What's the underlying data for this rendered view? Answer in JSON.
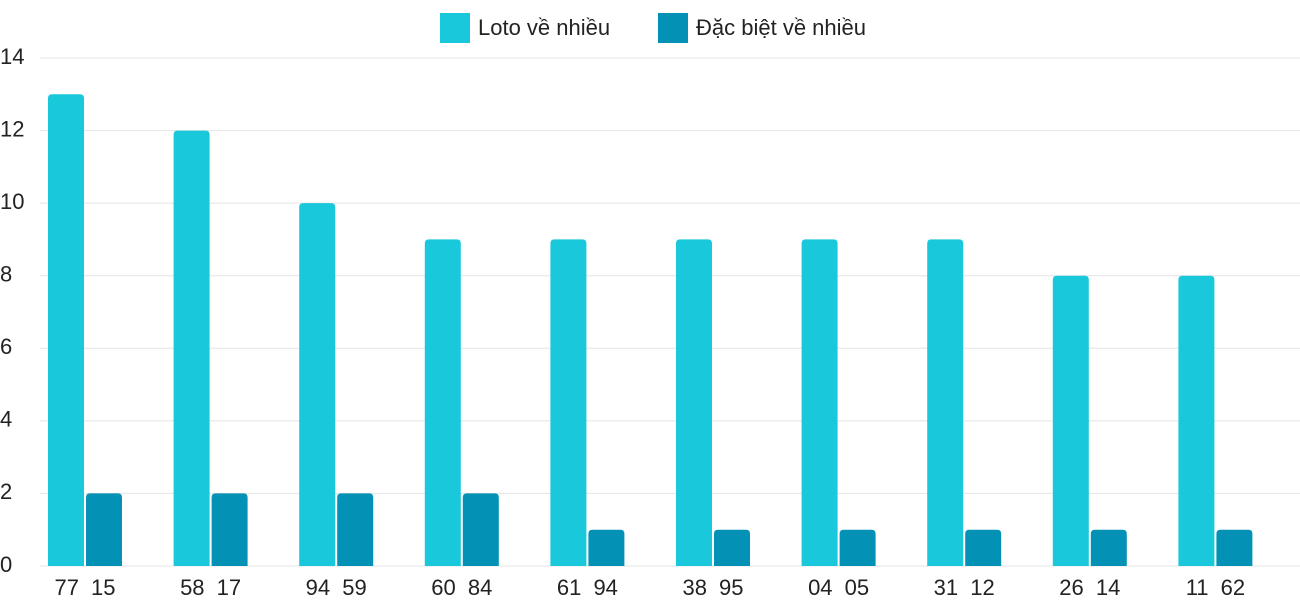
{
  "chart_data": {
    "type": "bar",
    "categories": [
      "77 15",
      "58 17",
      "94 59",
      "60 84",
      "61 94",
      "38 95",
      "04 05",
      "31 12",
      "26 14",
      "11 62"
    ],
    "series": [
      {
        "name": "Loto về nhiều",
        "color": "#1ac8db",
        "values": [
          13,
          12,
          10,
          9,
          9,
          9,
          9,
          9,
          8,
          8
        ]
      },
      {
        "name": "Đặc biệt về nhiều",
        "color": "#0392b5",
        "values": [
          2,
          2,
          2,
          2,
          1,
          1,
          1,
          1,
          1,
          1
        ]
      }
    ],
    "ylim": [
      0,
      14
    ],
    "yticks": [
      0,
      2,
      4,
      6,
      8,
      10,
      12,
      14
    ],
    "grid": true,
    "legend": "top"
  }
}
